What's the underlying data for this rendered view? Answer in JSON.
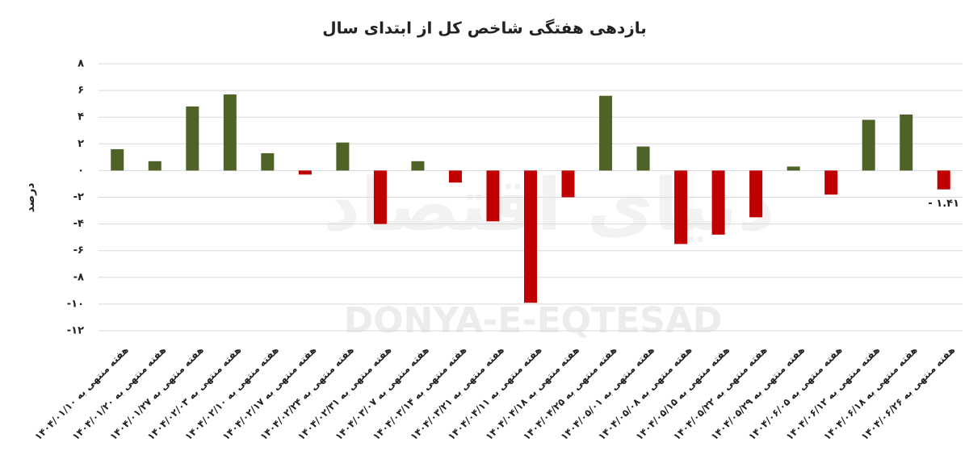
{
  "chart_data": {
    "type": "bar",
    "title": "بازدهی هفتگی شاخص کل از ابتدای سال",
    "y_axis_label": "درصد",
    "watermark": "DONYA-E-EQTESAD",
    "watermark_fa": "دنیای اقتصاد",
    "categories": [
      "هفته منتهی به ۱۴۰۴/۰۱/۱۰",
      "هفته منتهی به ۱۴۰۴/۰۱/۲۰",
      "هفته منتهی به ۱۴۰۴/۰۱/۲۷",
      "هفته منتهی به ۱۴۰۴/۰۲/۰۳",
      "هفته منتهی به ۱۴۰۴/۰۲/۱۰",
      "هفته منتهی به ۱۴۰۴/۰۲/۱۷",
      "هفته منتهی به ۱۴۰۴/۰۲/۲۴",
      "هفته منتهی به ۱۴۰۴/۰۲/۳۱",
      "هفته منتهی به ۱۴۰۴/۰۳/۰۷",
      "هفته منتهی به ۱۴۰۴/۰۳/۱۴",
      "هفته منتهی به ۱۴۰۴/۰۳/۲۱",
      "هفته منتهی به ۱۴۰۴/۰۴/۱۱",
      "هفته منتهی به ۱۴۰۴/۰۴/۱۸",
      "هفته منتهی به ۱۴۰۴/۰۴/۲۵",
      "هفته منتهی به ۱۴۰۴/۰۵/۰۱",
      "هفته منتهی به ۱۴۰۴/۰۵/۰۸",
      "هفته منتهی به ۱۴۰۴/۰۵/۱۵",
      "هفته منتهی به ۱۴۰۴/۰۵/۲۲",
      "هفته منتهی به ۱۴۰۴/۰۵/۲۹",
      "هفته منتهی به ۱۴۰۴/۰۶/۰۵",
      "هفته منتهی به ۱۴۰۴/۰۶/۱۲",
      "هفته منتهی به ۱۴۰۴/۰۶/۱۸",
      "هفته منتهی به ۱۴۰۴/۰۶/۲۶"
    ],
    "values": [
      1.6,
      0.7,
      4.8,
      5.7,
      1.3,
      -0.3,
      2.1,
      -4.0,
      0.7,
      -0.9,
      -3.8,
      -9.9,
      -2.0,
      5.6,
      1.8,
      -5.5,
      -4.8,
      -3.5,
      0.3,
      -1.8,
      3.8,
      4.2,
      -1.41
    ],
    "value_labels": [
      null,
      null,
      null,
      null,
      null,
      null,
      null,
      null,
      null,
      null,
      null,
      null,
      null,
      null,
      null,
      null,
      null,
      null,
      null,
      null,
      null,
      null,
      "- ۱.۴۱"
    ],
    "positive_color": "#4f6228",
    "negative_color": "#c00000",
    "ylim": [
      -12,
      8
    ],
    "yticks": [
      {
        "value": 8,
        "label": "۸"
      },
      {
        "value": 6,
        "label": "۶"
      },
      {
        "value": 4,
        "label": "۴"
      },
      {
        "value": 2,
        "label": "۲"
      },
      {
        "value": 0,
        "label": "۰"
      },
      {
        "value": -2,
        "label": "-۲"
      },
      {
        "value": -4,
        "label": "-۴"
      },
      {
        "value": -6,
        "label": "-۶"
      },
      {
        "value": -8,
        "label": "-۸"
      },
      {
        "value": -10,
        "label": "-۱۰"
      },
      {
        "value": -12,
        "label": "-۱۲"
      }
    ],
    "grid": true
  }
}
